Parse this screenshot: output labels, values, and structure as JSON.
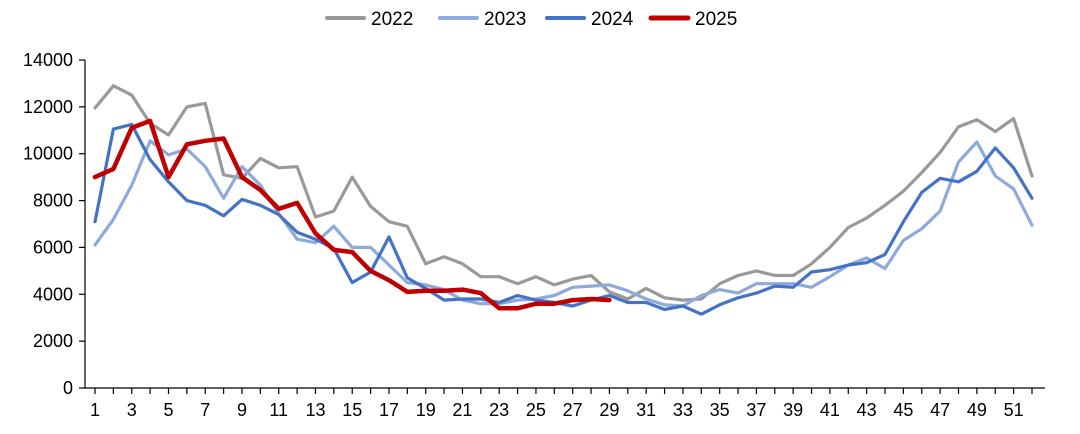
{
  "chart_data": {
    "type": "line",
    "title": "",
    "xlabel": "",
    "ylabel": "",
    "ylim": [
      0,
      14000
    ],
    "yticks": [
      0,
      2000,
      4000,
      6000,
      8000,
      10000,
      12000,
      14000
    ],
    "ytick_labels": [
      "0",
      "2000",
      "4000",
      "6000",
      "8000",
      "10000",
      "12000",
      "14000"
    ],
    "xlim": [
      1,
      52
    ],
    "xticks": [
      1,
      3,
      5,
      7,
      9,
      11,
      13,
      15,
      17,
      19,
      21,
      23,
      25,
      27,
      29,
      31,
      33,
      35,
      37,
      39,
      41,
      43,
      45,
      47,
      49,
      51
    ],
    "xtick_labels": [
      "1",
      "3",
      "5",
      "7",
      "9",
      "11",
      "13",
      "15",
      "17",
      "19",
      "21",
      "23",
      "25",
      "27",
      "29",
      "31",
      "33",
      "35",
      "37",
      "39",
      "41",
      "43",
      "45",
      "47",
      "49",
      "51"
    ],
    "grid": false,
    "legend_position": "top-center",
    "series": [
      {
        "name": "2022",
        "color": "#999999",
        "values": [
          11950,
          12900,
          12500,
          11300,
          10800,
          12000,
          12150,
          9100,
          8950,
          9800,
          9400,
          9450,
          7300,
          7550,
          9000,
          7750,
          7100,
          6900,
          5300,
          5600,
          5300,
          4750,
          4750,
          4450,
          4750,
          4400,
          4650,
          4800,
          4100,
          3800,
          4250,
          3850,
          3750,
          3800,
          4450,
          4800,
          5000,
          4800,
          4800,
          5300,
          6000,
          6850,
          7250,
          7800,
          8400,
          9200,
          10050,
          11150,
          11450,
          10950,
          11500,
          9050
        ]
      },
      {
        "name": "2023",
        "color": "#8EA9DB",
        "values": [
          6100,
          7200,
          8650,
          10550,
          9950,
          10200,
          9450,
          8100,
          9450,
          8650,
          7450,
          6350,
          6200,
          6900,
          6000,
          6000,
          5250,
          4500,
          4400,
          4200,
          3750,
          3600,
          3600,
          3750,
          3800,
          3950,
          4300,
          4350,
          4400,
          4150,
          3800,
          3550,
          3500,
          3950,
          4200,
          4050,
          4450,
          4450,
          4450,
          4300,
          4750,
          5250,
          5550,
          5100,
          6300,
          6800,
          7550,
          9650,
          10500,
          9050,
          8500,
          6950
        ]
      },
      {
        "name": "2024",
        "color": "#4472C4",
        "values": [
          7100,
          11050,
          11250,
          9750,
          8800,
          8000,
          7800,
          7350,
          8050,
          7800,
          7400,
          6650,
          6350,
          5950,
          4500,
          4950,
          6450,
          4700,
          4250,
          3750,
          3800,
          3800,
          3650,
          3950,
          3750,
          3650,
          3500,
          3750,
          3950,
          3650,
          3650,
          3350,
          3500,
          3150,
          3550,
          3850,
          4050,
          4350,
          4300,
          4950,
          5050,
          5250,
          5350,
          5700,
          7100,
          8350,
          8950,
          8800,
          9250,
          10250,
          9400,
          8100
        ]
      },
      {
        "name": "2025",
        "color": "#C00000",
        "values": [
          9000,
          9350,
          11100,
          11400,
          9000,
          10400,
          10550,
          10650,
          9000,
          8450,
          7650,
          7900,
          6600,
          5900,
          5800,
          5000,
          4600,
          4100,
          4150,
          4150,
          4200,
          4050,
          3400,
          3400,
          3600,
          3600,
          3750,
          3800,
          3750
        ]
      }
    ]
  }
}
